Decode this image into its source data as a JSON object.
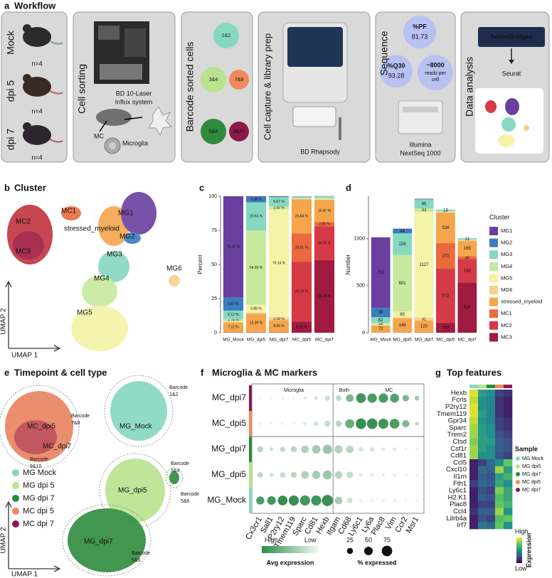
{
  "panels": {
    "a": {
      "letter": "a",
      "title": "Workflow",
      "groups": [
        "Mock",
        "dpi 5",
        "dpi 7"
      ],
      "n": [
        "n=4",
        "n=4",
        "n=4"
      ],
      "sorting": {
        "title": "Cell sorting",
        "instrument": [
          "BD 10-Laser",
          "Influx system"
        ],
        "mc": "MC",
        "microglia": "Microglia"
      },
      "barcodes": {
        "title": "Barcode sorted cells",
        "labels": [
          "1&2",
          "3&4",
          "5&6",
          "7&8",
          "9&10"
        ]
      },
      "capture": {
        "title": "Cell capture & library prep",
        "instrument": "BD Rhapsody"
      },
      "sequence": {
        "title": "Sequence",
        "pf_label": "%PF",
        "pf": 81.73,
        "q30_label": "%Q30",
        "q30": 93.28,
        "reads": "~8000",
        "reads_unit": [
          "reads per",
          "cell"
        ],
        "instrument": [
          "Illumina",
          "NextSeq 1000"
        ]
      },
      "analysis": {
        "title": "Data analysis",
        "platform": "SevenBridges",
        "tool": "Seurat"
      }
    },
    "b": {
      "letter": "b",
      "title": "Cluster",
      "labels": [
        "MC2",
        "MC1",
        "MC3",
        "stressed_myeloid",
        "MG1",
        "MG2",
        "MG3",
        "MG4",
        "MG5",
        "MG6"
      ],
      "x_label": "UMAP 1",
      "y_label": "UMAP 2"
    },
    "e": {
      "letter": "e",
      "title": "Timepoint & cell type",
      "labels": [
        [
          "Barcode",
          "7&8"
        ],
        [
          "MC_dpi5"
        ],
        [
          "MC_dpi7"
        ],
        [
          "Barcode",
          "9&10"
        ],
        [
          "Barcode",
          "1&2"
        ],
        [
          "MG_Mock"
        ],
        [
          "Barcode",
          "3&4"
        ],
        [
          "MG_dpi5"
        ],
        [
          "Barcode",
          "5&6"
        ],
        [
          "MG_dpi7"
        ],
        [
          "Barcode",
          "5&6"
        ]
      ],
      "legend": [
        {
          "name": "MG Mock",
          "color": "#86d8c0"
        },
        {
          "name": "MG dpi 5",
          "color": "#b9e38f"
        },
        {
          "name": "MG dpi 7",
          "color": "#2e8b3e"
        },
        {
          "name": "MC dpi 5",
          "color": "#f08a5d"
        },
        {
          "name": "MC dpi 7",
          "color": "#8b1a4a"
        }
      ],
      "x_label": "UMAP 1",
      "y_label": "UMAP 2"
    }
  },
  "chart_data": [
    {
      "type": "stacked_bar",
      "letter": "c",
      "y_label": "Percent",
      "categories": [
        "MG_Mock",
        "MG_dpi5",
        "MG_dpi7",
        "MC_dpi5",
        "MC_dpi7"
      ],
      "ylim": [
        0,
        100
      ],
      "yticks": [
        0,
        25,
        50,
        75,
        100
      ],
      "series": [
        {
          "name": "MG1",
          "color": "#6a3fa0",
          "values": [
            74.14,
            0.5,
            0.3,
            0.1,
            0.1
          ],
          "value_labels": [
            "74.14 %",
            null,
            null,
            null,
            null
          ]
        },
        {
          "name": "MG2",
          "color": "#3a7ebf",
          "values": [
            9.67,
            3.98,
            0.3,
            0.1,
            0.1
          ],
          "value_labels": [
            "9.67 %",
            "3.98 %",
            null,
            null,
            null
          ]
        },
        {
          "name": "MG3",
          "color": "#86d8c0",
          "values": [
            6.12,
            20.63,
            6.67,
            1.0,
            1.1
          ],
          "value_labels": [
            "6.12 %",
            "20.63 %",
            "6.67 %",
            null,
            null
          ]
        },
        {
          "name": "MG4",
          "color": "#c6e99d",
          "values": [
            1.78,
            54.39,
            2.32,
            0.6,
            0.8
          ],
          "value_labels": [
            "1.78 %",
            "54.39 %",
            "2.32 %",
            null,
            null
          ]
        },
        {
          "name": "MG5",
          "color": "#f4f3a6",
          "values": [
            0.4,
            5.88,
            79.14,
            0.2,
            0.3
          ],
          "value_labels": [
            null,
            "5.88 %",
            "79.14 %",
            null,
            null
          ]
        },
        {
          "name": "MG6",
          "color": "#f8d08c",
          "values": [
            0.3,
            0.6,
            2.18,
            0.2,
            0.2
          ],
          "value_labels": [
            null,
            null,
            "2.18 %",
            null,
            null
          ]
        },
        {
          "name": "stressed_myeloid",
          "color": "#f5a64c",
          "values": [
            7.11,
            13.39,
            8.43,
            24.84,
            16.47
          ],
          "value_labels": [
            "7.11 %",
            "13.39 %",
            "8.43 %",
            "24.84 %",
            "16.47 %"
          ]
        },
        {
          "name": "MC1",
          "color": "#ea6a3e",
          "values": [
            0.2,
            0.3,
            0.3,
            20.81,
            2.99
          ],
          "value_labels": [
            null,
            null,
            null,
            "20.81 %",
            "2.99 %"
          ]
        },
        {
          "name": "MC2",
          "color": "#d53a47",
          "values": [
            0.2,
            0.2,
            0.2,
            43.76,
            24.75
          ],
          "value_labels": [
            null,
            null,
            null,
            "43.76 %",
            "24.75 %"
          ]
        },
        {
          "name": "MC3",
          "color": "#a11a3f",
          "values": [
            0.08,
            0.13,
            0.16,
            8.26,
            53.29
          ],
          "value_labels": [
            null,
            null,
            null,
            "8.26 %",
            "53.29 %"
          ]
        }
      ]
    },
    {
      "type": "stacked_bar",
      "letter": "d",
      "y_label": "Number",
      "legend": "right",
      "legend_title": "Cluster",
      "categories": [
        "MG_Mock",
        "MG_dpi5",
        "MG_dpi7",
        "MC_dpi5",
        "MC_dpi7"
      ],
      "ylim": [
        0,
        1450
      ],
      "yticks": [
        0,
        500,
        1000
      ],
      "series": [
        {
          "name": "MG1",
          "color": "#6a3fa0",
          "values": [
            751,
            6,
            4,
            1,
            1
          ]
        },
        {
          "name": "MG2",
          "color": "#3a7ebf",
          "values": [
            98,
            44,
            4,
            1,
            1
          ]
        },
        {
          "name": "MG3",
          "color": "#86d8c0",
          "values": [
            62,
            228,
            95,
            13,
            11
          ]
        },
        {
          "name": "MG4",
          "color": "#c6e99d",
          "values": [
            18,
            601,
            33,
            8,
            8
          ]
        },
        {
          "name": "MG5",
          "color": "#f4f3a6",
          "values": [
            5,
            65,
            1127,
            3,
            3
          ]
        },
        {
          "name": "MG6",
          "color": "#f8d08c",
          "values": [
            3,
            7,
            31,
            3,
            2
          ]
        },
        {
          "name": "stressed_myeloid",
          "color": "#f5a64c",
          "values": [
            72,
            148,
            120,
            326,
            165
          ]
        },
        {
          "name": "MC1",
          "color": "#ea6a3e",
          "values": [
            2,
            3,
            4,
            272,
            30
          ]
        },
        {
          "name": "MC2",
          "color": "#d53a47",
          "values": [
            2,
            2,
            3,
            572,
            248
          ]
        },
        {
          "name": "MC3",
          "color": "#a11a3f",
          "values": [
            1,
            1,
            2,
            108,
            534
          ]
        }
      ]
    },
    {
      "type": "dot",
      "letter": "f",
      "title": "Microglia & MC markers",
      "genes": [
        "Cx3cr1",
        "Sall1",
        "P2ry12",
        "Tmem119",
        "Sparc",
        "Cd81",
        "Hexb",
        "Itgam",
        "Cd68",
        "Ly6c1",
        "Ly6a",
        "Plac8",
        "Vim",
        "Ccr2",
        "Msr1"
      ],
      "group_labels": [
        "Microglia",
        "Both",
        "MC"
      ],
      "series": [
        {
          "name": "MC_dpi7",
          "color": "#8b1a4a",
          "values": [
            5,
            5,
            5,
            5,
            8,
            10,
            20,
            20,
            40,
            65,
            60,
            60,
            55,
            30,
            15
          ],
          "expression": [
            0.05,
            0.05,
            0.05,
            0.05,
            0.1,
            0.15,
            0.2,
            0.3,
            0.6,
            0.9,
            0.85,
            0.85,
            0.8,
            0.6,
            0.4
          ]
        },
        {
          "name": "MC_dpi5",
          "color": "#f08a5d",
          "values": [
            5,
            5,
            5,
            5,
            10,
            15,
            25,
            25,
            55,
            75,
            75,
            70,
            65,
            35,
            10
          ],
          "expression": [
            0.05,
            0.05,
            0.05,
            0.05,
            0.1,
            0.2,
            0.25,
            0.3,
            0.7,
            0.95,
            0.95,
            0.9,
            0.85,
            0.6,
            0.3
          ]
        },
        {
          "name": "MG_dpi7",
          "color": "#2e8b3e",
          "values": [
            25,
            10,
            20,
            25,
            40,
            50,
            60,
            45,
            40,
            15,
            15,
            10,
            10,
            5,
            5
          ],
          "expression": [
            0.3,
            0.2,
            0.25,
            0.3,
            0.35,
            0.4,
            0.45,
            0.35,
            0.3,
            0.15,
            0.15,
            0.1,
            0.1,
            0.05,
            0.05
          ]
        },
        {
          "name": "MG_dpi5",
          "color": "#b9e38f",
          "values": [
            20,
            10,
            20,
            25,
            40,
            45,
            55,
            40,
            30,
            10,
            10,
            8,
            8,
            5,
            5
          ],
          "expression": [
            0.3,
            0.2,
            0.25,
            0.3,
            0.35,
            0.4,
            0.45,
            0.3,
            0.25,
            0.1,
            0.1,
            0.08,
            0.08,
            0.05,
            0.05
          ]
        },
        {
          "name": "MG_Mock",
          "color": "#86d8c0",
          "values": [
            45,
            50,
            65,
            70,
            70,
            70,
            85,
            40,
            20,
            10,
            10,
            8,
            8,
            5,
            5
          ],
          "expression": [
            0.85,
            0.9,
            0.95,
            0.95,
            0.9,
            0.9,
            0.95,
            0.4,
            0.2,
            0.05,
            0.05,
            0.05,
            0.05,
            0.05,
            0.05
          ]
        }
      ],
      "color_legend_labels": [
        "High",
        "Low"
      ],
      "color_legend_title": "Avg expression",
      "size_legend": [
        25,
        50,
        75
      ],
      "size_legend_title": "% expressed"
    },
    {
      "type": "heatmap",
      "letter": "g",
      "title": "Top features",
      "genes": [
        "Hexb",
        "Fcrls",
        "P2ry12",
        "Tmem119",
        "Gpr34",
        "Sparc",
        "Trem2",
        "Ctsd",
        "Csf1r",
        "Cd81",
        "Ccl5",
        "Cxcl10",
        "Il1rn",
        "Fth1",
        "Ly6c1",
        "H2.K1",
        "Plac8",
        "Ccl4",
        "Lilrb4a",
        "Irf7"
      ],
      "samples": {
        "title": "Sample",
        "names": [
          "MG Mock",
          "MG dpi5",
          "MG dpi7",
          "MC dpi5",
          "MC dpi7"
        ],
        "colors": [
          "#86d8c0",
          "#b9e38f",
          "#2e8b3e",
          "#f08a5d",
          "#8b1a4a"
        ]
      },
      "values": [
        [
          0.95,
          0.55,
          0.5,
          0.2,
          0.15
        ],
        [
          0.9,
          0.5,
          0.45,
          0.15,
          0.1
        ],
        [
          0.95,
          0.5,
          0.45,
          0.15,
          0.1
        ],
        [
          0.95,
          0.55,
          0.45,
          0.15,
          0.1
        ],
        [
          0.9,
          0.5,
          0.45,
          0.2,
          0.15
        ],
        [
          0.85,
          0.55,
          0.5,
          0.2,
          0.15
        ],
        [
          0.85,
          0.55,
          0.5,
          0.25,
          0.2
        ],
        [
          0.8,
          0.55,
          0.55,
          0.3,
          0.25
        ],
        [
          0.85,
          0.55,
          0.5,
          0.3,
          0.25
        ],
        [
          0.85,
          0.5,
          0.5,
          0.25,
          0.2
        ],
        [
          0.1,
          0.2,
          0.35,
          0.5,
          0.75
        ],
        [
          0.1,
          0.35,
          0.3,
          0.85,
          0.55
        ],
        [
          0.1,
          0.3,
          0.25,
          0.55,
          0.65
        ],
        [
          0.2,
          0.35,
          0.3,
          0.6,
          0.5
        ],
        [
          0.1,
          0.25,
          0.2,
          0.8,
          0.6
        ],
        [
          0.1,
          0.3,
          0.25,
          0.7,
          0.6
        ],
        [
          0.1,
          0.2,
          0.2,
          0.75,
          0.65
        ],
        [
          0.15,
          0.3,
          0.3,
          0.85,
          0.5
        ],
        [
          0.1,
          0.25,
          0.2,
          0.7,
          0.75
        ],
        [
          0.1,
          0.4,
          0.35,
          0.75,
          0.5
        ]
      ],
      "scale_title": "Expression",
      "scale_labels": [
        "High",
        "Low"
      ]
    }
  ]
}
